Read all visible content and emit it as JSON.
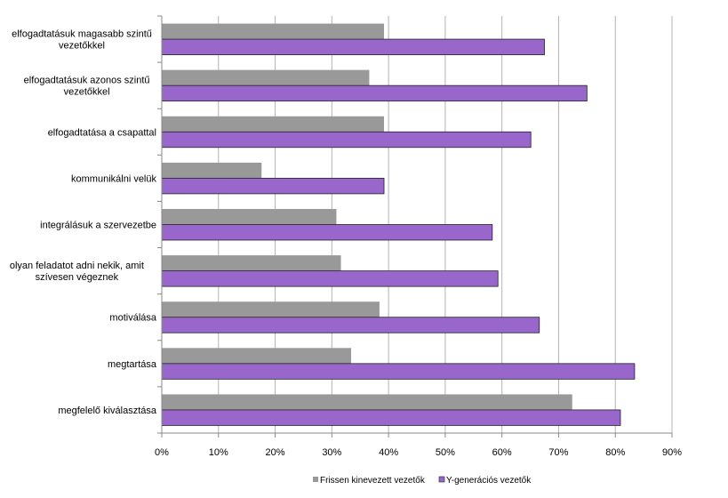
{
  "chart_data": {
    "type": "bar",
    "orientation": "horizontal",
    "categories": [
      [
        "elfogadtatásuk magasabb szintű",
        "vezetőkkel"
      ],
      [
        "elfogadtatásuk azonos szintű",
        "vezetőkkel"
      ],
      [
        "elfogadtatása a csapattal"
      ],
      [
        "kommunikálni velük"
      ],
      [
        "integrálásuk a szervezetbe"
      ],
      [
        "olyan feladatot adni nekik, amit",
        "szívesen végeznek"
      ],
      [
        "motiválása"
      ],
      [
        "megtartása"
      ],
      [
        "megfelelő kiválasztása"
      ]
    ],
    "series": [
      {
        "name": "Frissen kinevezett vezetők",
        "color": "#999999",
        "values": [
          39.2,
          36.6,
          39.2,
          17.6,
          30.8,
          31.6,
          38.4,
          33.4,
          72.4
        ]
      },
      {
        "name": "Y-generációs vezetők",
        "color": "#9966cc",
        "values": [
          67.5,
          75.0,
          65.1,
          39.2,
          58.3,
          59.3,
          66.6,
          83.4,
          80.9
        ]
      }
    ],
    "xlim": [
      0,
      90
    ],
    "xticks": [
      "0%",
      "10%",
      "20%",
      "30%",
      "40%",
      "50%",
      "60%",
      "70%",
      "80%",
      "90%"
    ],
    "grid": true,
    "legend_position": "bottom"
  }
}
